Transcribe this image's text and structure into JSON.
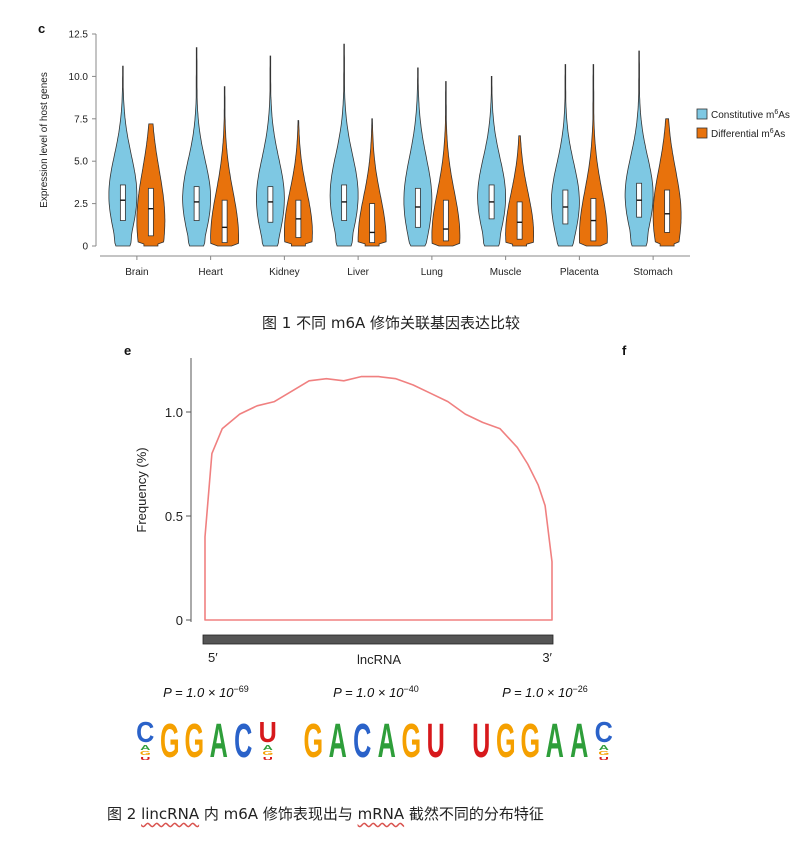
{
  "panel_letters": {
    "c": "c",
    "e": "e",
    "f": "f"
  },
  "captions": {
    "fig1": "图 1 不同 m6A 修饰关联基因表达比较",
    "fig2_prefix": "图 2 ",
    "fig2_lincrna": "lincRNA",
    "fig2_mid": " 内 m6A 修饰表现出与 ",
    "fig2_mrna": "mRNA",
    "fig2_suffix": " 截然不同的分布特征"
  },
  "colors": {
    "constitutive": "#7ec8e3",
    "differential": "#e8720c",
    "curve": "#f08080",
    "bar": "#555555"
  },
  "chart_data": [
    {
      "type": "violin",
      "title": "",
      "ylabel": "Expression level of host genes",
      "xlabel": "",
      "ylim": [
        0,
        12.5
      ],
      "yticks": [
        "0",
        "2.5",
        "5.0",
        "7.5",
        "10.0",
        "12.5"
      ],
      "categories": [
        "Brain",
        "Heart",
        "Kidney",
        "Liver",
        "Lung",
        "Muscle",
        "Placenta",
        "Stomach"
      ],
      "legend": {
        "position": "right",
        "entries": [
          {
            "label_base": "Constitutive m",
            "label_sup": "6",
            "label_tail": "As"
          },
          {
            "label_base": "Differential m",
            "label_sup": "6",
            "label_tail": "As"
          }
        ]
      },
      "series": [
        {
          "name": "Constitutive m6As",
          "max": [
            10.6,
            11.7,
            11.2,
            11.9,
            10.5,
            10.0,
            10.7,
            11.5
          ],
          "q1": [
            1.5,
            1.5,
            1.4,
            1.5,
            1.1,
            1.6,
            1.3,
            1.7
          ],
          "median": [
            2.7,
            2.6,
            2.6,
            2.6,
            2.3,
            2.6,
            2.3,
            2.7
          ],
          "q3": [
            3.6,
            3.5,
            3.5,
            3.6,
            3.4,
            3.6,
            3.3,
            3.7
          ],
          "peak": [
            3.0,
            2.8,
            2.8,
            3.0,
            2.7,
            2.9,
            2.6,
            3.0
          ]
        },
        {
          "name": "Differential m6As",
          "max": [
            7.2,
            9.4,
            7.4,
            7.5,
            9.7,
            6.5,
            10.7,
            7.5
          ],
          "q1": [
            0.6,
            0.2,
            0.5,
            0.2,
            0.3,
            0.4,
            0.3,
            0.8
          ],
          "median": [
            2.2,
            1.1,
            1.6,
            0.8,
            1.0,
            1.4,
            1.5,
            1.9
          ],
          "q3": [
            3.4,
            2.7,
            2.7,
            2.5,
            2.7,
            2.6,
            2.8,
            3.3
          ],
          "peak": [
            1.5,
            0.5,
            0.8,
            0.4,
            0.6,
            0.7,
            0.6,
            1.8
          ]
        }
      ]
    },
    {
      "type": "line",
      "title": "",
      "ylabel": "Frequency (%)",
      "xlabel": "lncRNA",
      "ylim": [
        0,
        1.25
      ],
      "yticks": [
        "0",
        "0.5",
        "1.0"
      ],
      "x_start_label": "5′",
      "x_end_label": "3′",
      "x": [
        0,
        0.02,
        0.05,
        0.1,
        0.15,
        0.2,
        0.25,
        0.3,
        0.35,
        0.4,
        0.45,
        0.5,
        0.55,
        0.6,
        0.65,
        0.7,
        0.75,
        0.8,
        0.85,
        0.9,
        0.93,
        0.96,
        0.98,
        1.0
      ],
      "y": [
        0.4,
        0.8,
        0.92,
        0.99,
        1.03,
        1.05,
        1.1,
        1.15,
        1.16,
        1.15,
        1.17,
        1.17,
        1.16,
        1.13,
        1.09,
        1.05,
        0.99,
        0.95,
        0.92,
        0.83,
        0.75,
        0.65,
        0.55,
        0.28
      ]
    }
  ],
  "motifs": [
    {
      "pvalue_base": "P = 1.0 × 10",
      "pvalue_exp": "−69",
      "letters": "CGGACU"
    },
    {
      "pvalue_base": "P = 1.0 × 10",
      "pvalue_exp": "−40",
      "letters": "GACAGU"
    },
    {
      "pvalue_base": "P = 1.0 × 10",
      "pvalue_exp": "−26",
      "letters": "UGGAAC"
    }
  ]
}
